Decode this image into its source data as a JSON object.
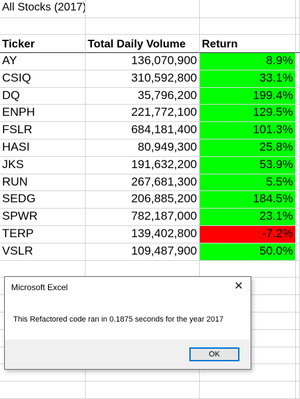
{
  "title": "All Stocks (2017)",
  "headers": {
    "ticker": "Ticker",
    "volume": "Total Daily Volume",
    "return": "Return"
  },
  "rows": [
    {
      "ticker": "AY",
      "volume": "136,070,900",
      "return": "8.9%",
      "positive": true
    },
    {
      "ticker": "CSIQ",
      "volume": "310,592,800",
      "return": "33.1%",
      "positive": true
    },
    {
      "ticker": "DQ",
      "volume": "35,796,200",
      "return": "199.4%",
      "positive": true
    },
    {
      "ticker": "ENPH",
      "volume": "221,772,100",
      "return": "129.5%",
      "positive": true
    },
    {
      "ticker": "FSLR",
      "volume": "684,181,400",
      "return": "101.3%",
      "positive": true
    },
    {
      "ticker": "HASI",
      "volume": "80,949,300",
      "return": "25.8%",
      "positive": true
    },
    {
      "ticker": "JKS",
      "volume": "191,632,200",
      "return": "53.9%",
      "positive": true
    },
    {
      "ticker": "RUN",
      "volume": "267,681,300",
      "return": "5.5%",
      "positive": true
    },
    {
      "ticker": "SEDG",
      "volume": "206,885,200",
      "return": "184.5%",
      "positive": true
    },
    {
      "ticker": "SPWR",
      "volume": "782,187,000",
      "return": "23.1%",
      "positive": true
    },
    {
      "ticker": "TERP",
      "volume": "139,402,800",
      "return": "-7.2%",
      "positive": false
    },
    {
      "ticker": "VSLR",
      "volume": "109,487,900",
      "return": "50.0%",
      "positive": true
    }
  ],
  "colors": {
    "positive": "#00ff00",
    "negative": "#ff0000",
    "ok_border": "#0078d7"
  },
  "dialog": {
    "title": "Microsoft Excel",
    "message": "This Refactored code ran in 0.1875 seconds for the year 2017",
    "ok_label": "OK",
    "close_icon": "close-icon"
  }
}
